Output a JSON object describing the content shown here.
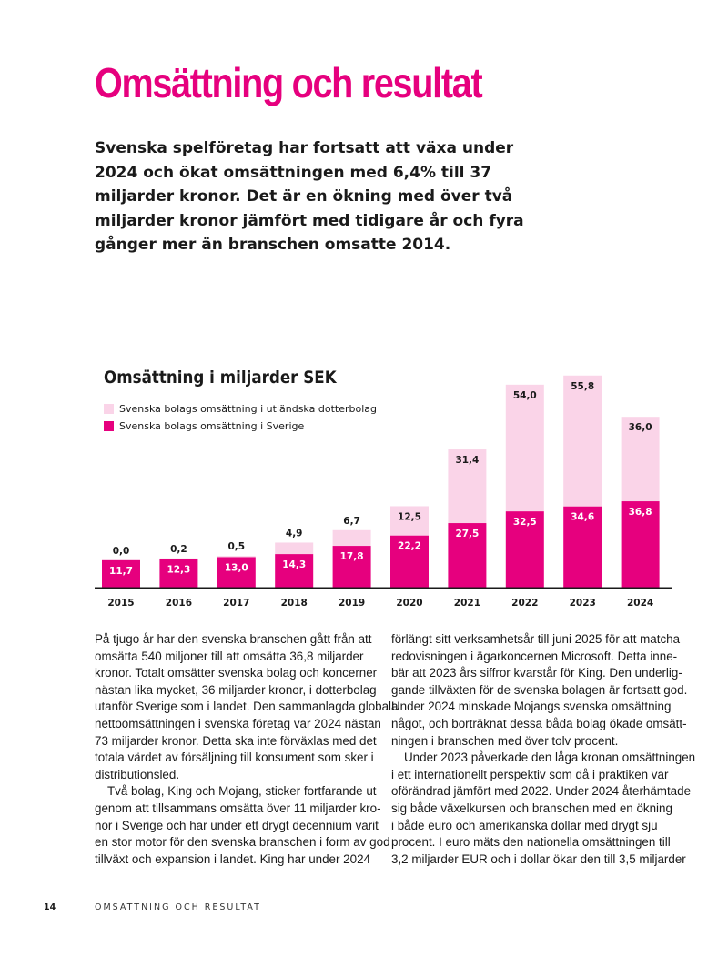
{
  "page": {
    "title": "Omsättning och resultat",
    "lead_lines": [
      "Svenska spelföretag har fortsatt att växa under",
      "2024 och ökat omsättningen med 6,4% till 37",
      "miljarder kronor. Det är en ökning med över två",
      "miljarder kronor jämfört med tidigare år och fyra",
      "gånger mer än branschen omsatte 2014."
    ],
    "footer": {
      "page_number": "14",
      "section": "OMSÄTTNING OCH RESULTAT"
    }
  },
  "colors": {
    "accent": "#e6007e",
    "light": "#fad4e8",
    "axis": "#1a1a1a"
  },
  "chart_data": {
    "type": "bar",
    "stacked": true,
    "title": "Omsättning i miljarder SEK",
    "categories": [
      "2015",
      "2016",
      "2017",
      "2018",
      "2019",
      "2020",
      "2021",
      "2022",
      "2023",
      "2024"
    ],
    "series": [
      {
        "name": "Svenska bolags omsättning i Sverige",
        "color": "#e6007e",
        "values": [
          11.7,
          12.3,
          13.0,
          14.3,
          17.8,
          22.2,
          27.5,
          32.5,
          34.6,
          36.8
        ],
        "labels": [
          "11,7",
          "12,3",
          "13,0",
          "14,3",
          "17,8",
          "22,2",
          "27,5",
          "32,5",
          "34,6",
          "36,8"
        ]
      },
      {
        "name": "Svenska bolags omsättning i utländska dotterbolag",
        "color": "#fad4e8",
        "values": [
          0.0,
          0.2,
          0.5,
          4.9,
          6.7,
          12.5,
          31.4,
          54.0,
          55.8,
          36.0
        ],
        "labels": [
          "0,0",
          "0,2",
          "0,5",
          "4,9",
          "6,7",
          "12,5",
          "31,4",
          "54,0",
          "55,8",
          "36,0"
        ]
      }
    ],
    "legend": [
      {
        "label": "Svenska bolags omsättning i utländska dotterbolag",
        "color": "#fad4e8"
      },
      {
        "label": "Svenska bolags omsättning i Sverige",
        "color": "#e6007e"
      }
    ],
    "ylim": [
      0,
      95
    ],
    "grid": false
  },
  "body": {
    "left_paragraphs": [
      [
        "På tjugo år har den svenska branschen gått från att",
        "omsätta 540 miljoner till att omsätta 36,8 miljarder",
        "kronor. Totalt omsätter svenska bolag och koncerner",
        "nästan lika mycket, 36 miljarder kronor, i dotterbolag",
        "utanför Sverige som i landet. Den sammanlagda globala",
        "nettoomsättningen i svenska företag var 2024 nästan",
        "73 miljarder kronor. Detta ska inte förväxlas med det",
        "totala värdet av försäljning till konsument som sker i",
        "distributionsled."
      ],
      [
        "Två bolag, King och Mojang, sticker fortfarande ut",
        "genom att tillsammans omsätta över 11 miljarder kro-",
        "nor i Sverige och har under ett drygt decennium varit",
        "en stor motor för den svenska branschen i form av god",
        "tillväxt och expansion i landet. King har under 2024"
      ]
    ],
    "right_paragraphs": [
      [
        "förlängt sitt verksamhetsår till juni 2025 för att matcha",
        "redovisningen i ägarkoncernen Microsoft. Detta inne-",
        "bär att 2023 års siffror kvarstår för King. Den underlig-",
        "gande tillväxten för de svenska bolagen är fortsatt god.",
        "Under 2024 minskade Mojangs svenska omsättning",
        "något, och borträknat dessa båda bolag ökade omsätt-",
        "ningen i branschen med över tolv procent."
      ],
      [
        "Under 2023 påverkade den låga kronan omsättningen",
        "i ett internationellt perspektiv som då i praktiken var",
        "oförändrad jämfört med 2022. Under 2024 återhämtade",
        "sig både växelkursen och branschen med en ökning",
        "i både euro och amerikanska dollar med drygt sju",
        "procent. I euro mäts den nationella omsättningen till",
        "3,2 miljarder EUR och i dollar ökar den till 3,5 miljarder"
      ]
    ]
  }
}
